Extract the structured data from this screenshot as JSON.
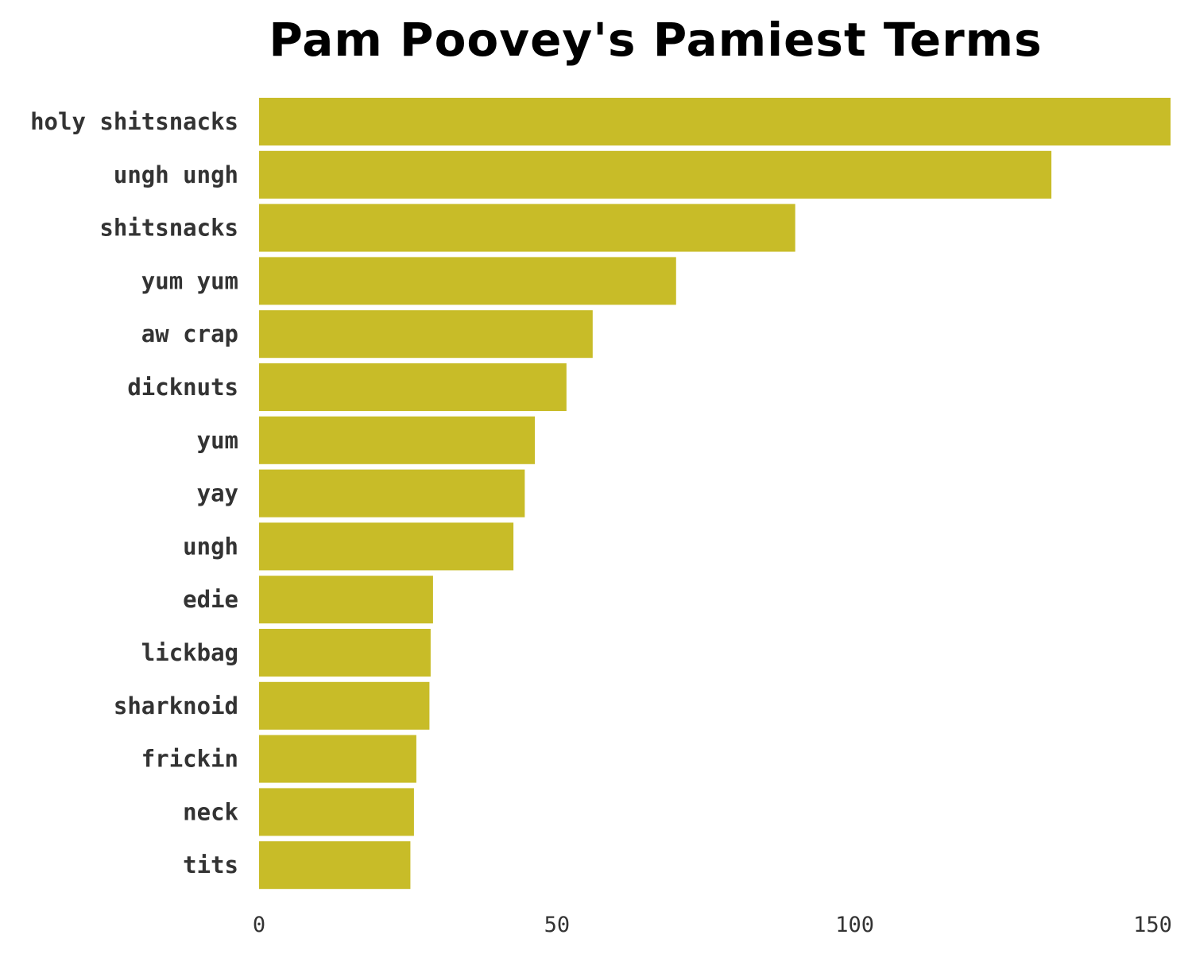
{
  "chart_data": {
    "type": "bar",
    "orientation": "horizontal",
    "title": "Pam Poovey's Pamiest Terms",
    "xlabel": "",
    "ylabel": "",
    "categories": [
      "holy shitsnacks",
      "ungh ungh",
      "shitsnacks",
      "yum yum",
      "aw crap",
      "dicknuts",
      "yum",
      "yay",
      "ungh",
      "edie",
      "lickbag",
      "sharknoid",
      "frickin",
      "neck",
      "tits"
    ],
    "values": [
      153,
      133,
      90,
      70,
      56,
      51.6,
      46.3,
      44.6,
      42.7,
      29.2,
      28.8,
      28.6,
      26.4,
      26,
      25.4
    ],
    "xlim": [
      0,
      153
    ],
    "xticks": [
      0,
      50,
      100,
      150
    ],
    "grid": false,
    "legend": "none",
    "colors": {
      "bar": "#c8bc28",
      "label": "#333333",
      "title": "#000000"
    }
  }
}
